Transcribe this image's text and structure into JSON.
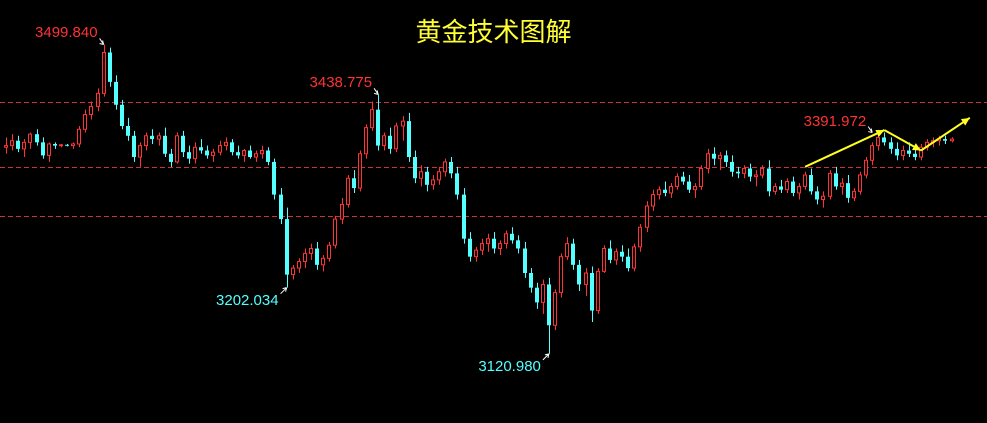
{
  "title": "黄金技术图解",
  "colors": {
    "background": "#000000",
    "title": "#ffff33",
    "bull_candle": "#ff3333",
    "bear_candle": "#54ffff",
    "flat_candle": "#ffffff",
    "high_label": "#ff3333",
    "low_label": "#54ffff",
    "level_line": "#cc3333",
    "forecast_arrow": "#ffff22"
  },
  "chart_data": {
    "type": "candlestick",
    "title": "黄金技术图解",
    "ylim": [
      3100,
      3520
    ],
    "grid": false,
    "legend": "none",
    "reference_levels": [
      3430,
      3350,
      3290
    ],
    "annotations": [
      {
        "text": "3499.840",
        "price": 3499.84,
        "candle": 16,
        "kind": "high"
      },
      {
        "text": "3438.775",
        "price": 3438.775,
        "candle": 61,
        "kind": "high"
      },
      {
        "text": "3391.972",
        "price": 3391.972,
        "candle": 142,
        "kind": "high"
      },
      {
        "text": "3202.034",
        "price": 3202.034,
        "candle": 46,
        "kind": "low"
      },
      {
        "text": "3120.980",
        "price": 3120.98,
        "candle": 89,
        "kind": "low"
      }
    ],
    "forecast_path": [
      {
        "candle": 131,
        "price": 3350
      },
      {
        "candle": 144,
        "price": 3395
      },
      {
        "candle": 150,
        "price": 3370
      },
      {
        "candle": 158,
        "price": 3410
      }
    ],
    "candles": [
      [
        3374,
        3386,
        3366,
        3376
      ],
      [
        3376,
        3390,
        3370,
        3382
      ],
      [
        3382,
        3388,
        3368,
        3372
      ],
      [
        3372,
        3384,
        3362,
        3380
      ],
      [
        3380,
        3392,
        3372,
        3390
      ],
      [
        3390,
        3396,
        3376,
        3380
      ],
      [
        3380,
        3386,
        3360,
        3364
      ],
      [
        3364,
        3380,
        3356,
        3378
      ],
      [
        3378,
        3380,
        3372,
        3376
      ],
      [
        3376,
        3378,
        3374,
        3377
      ],
      [
        3377,
        3378,
        3375,
        3376
      ],
      [
        3376,
        3380,
        3372,
        3378
      ],
      [
        3378,
        3400,
        3374,
        3396
      ],
      [
        3396,
        3420,
        3392,
        3414
      ],
      [
        3414,
        3430,
        3408,
        3424
      ],
      [
        3424,
        3446,
        3418,
        3440
      ],
      [
        3440,
        3499.84,
        3436,
        3490
      ],
      [
        3490,
        3496,
        3448,
        3454
      ],
      [
        3454,
        3462,
        3420,
        3426
      ],
      [
        3426,
        3432,
        3396,
        3400
      ],
      [
        3400,
        3410,
        3382,
        3388
      ],
      [
        3388,
        3394,
        3356,
        3362
      ],
      [
        3362,
        3380,
        3350,
        3376
      ],
      [
        3376,
        3392,
        3370,
        3388
      ],
      [
        3388,
        3396,
        3378,
        3384
      ],
      [
        3384,
        3392,
        3376,
        3388
      ],
      [
        3388,
        3398,
        3362,
        3366
      ],
      [
        3366,
        3372,
        3350,
        3356
      ],
      [
        3356,
        3392,
        3354,
        3388
      ],
      [
        3388,
        3394,
        3362,
        3368
      ],
      [
        3368,
        3376,
        3354,
        3360
      ],
      [
        3360,
        3380,
        3354,
        3374
      ],
      [
        3374,
        3384,
        3366,
        3370
      ],
      [
        3370,
        3376,
        3360,
        3364
      ],
      [
        3364,
        3372,
        3356,
        3368
      ],
      [
        3368,
        3382,
        3364,
        3376
      ],
      [
        3376,
        3386,
        3370,
        3380
      ],
      [
        3380,
        3384,
        3364,
        3368
      ],
      [
        3368,
        3376,
        3360,
        3364
      ],
      [
        3364,
        3372,
        3356,
        3370
      ],
      [
        3370,
        3376,
        3360,
        3362
      ],
      [
        3362,
        3370,
        3356,
        3366
      ],
      [
        3366,
        3376,
        3360,
        3370
      ],
      [
        3370,
        3374,
        3352,
        3356
      ],
      [
        3356,
        3360,
        3310,
        3316
      ],
      [
        3316,
        3324,
        3280,
        3286
      ],
      [
        3286,
        3300,
        3202.034,
        3218
      ],
      [
        3218,
        3230,
        3212,
        3226
      ],
      [
        3226,
        3238,
        3220,
        3234
      ],
      [
        3234,
        3250,
        3226,
        3244
      ],
      [
        3244,
        3256,
        3236,
        3250
      ],
      [
        3250,
        3258,
        3224,
        3230
      ],
      [
        3230,
        3242,
        3222,
        3238
      ],
      [
        3238,
        3258,
        3234,
        3254
      ],
      [
        3254,
        3290,
        3250,
        3286
      ],
      [
        3286,
        3312,
        3280,
        3304
      ],
      [
        3304,
        3340,
        3300,
        3336
      ],
      [
        3336,
        3346,
        3318,
        3324
      ],
      [
        3324,
        3370,
        3320,
        3366
      ],
      [
        3366,
        3402,
        3360,
        3398
      ],
      [
        3398,
        3430,
        3394,
        3420
      ],
      [
        3420,
        3438.775,
        3370,
        3376
      ],
      [
        3376,
        3392,
        3370,
        3388
      ],
      [
        3388,
        3398,
        3366,
        3372
      ],
      [
        3372,
        3404,
        3368,
        3400
      ],
      [
        3400,
        3412,
        3382,
        3406
      ],
      [
        3406,
        3416,
        3356,
        3362
      ],
      [
        3362,
        3370,
        3330,
        3336
      ],
      [
        3336,
        3352,
        3326,
        3344
      ],
      [
        3344,
        3350,
        3320,
        3328
      ],
      [
        3328,
        3340,
        3322,
        3334
      ],
      [
        3334,
        3350,
        3328,
        3344
      ],
      [
        3344,
        3360,
        3338,
        3356
      ],
      [
        3356,
        3362,
        3336,
        3342
      ],
      [
        3342,
        3350,
        3310,
        3316
      ],
      [
        3316,
        3324,
        3256,
        3262
      ],
      [
        3262,
        3270,
        3234,
        3240
      ],
      [
        3240,
        3252,
        3234,
        3248
      ],
      [
        3248,
        3262,
        3242,
        3256
      ],
      [
        3256,
        3268,
        3246,
        3262
      ],
      [
        3262,
        3270,
        3244,
        3250
      ],
      [
        3250,
        3260,
        3242,
        3256
      ],
      [
        3256,
        3272,
        3250,
        3268
      ],
      [
        3268,
        3276,
        3256,
        3260
      ],
      [
        3260,
        3266,
        3244,
        3250
      ],
      [
        3250,
        3258,
        3214,
        3220
      ],
      [
        3220,
        3226,
        3196,
        3202
      ],
      [
        3202,
        3208,
        3176,
        3184
      ],
      [
        3184,
        3212,
        3170,
        3206
      ],
      [
        3206,
        3214,
        3120.98,
        3156
      ],
      [
        3156,
        3200,
        3150,
        3196
      ],
      [
        3196,
        3244,
        3190,
        3240
      ],
      [
        3240,
        3264,
        3236,
        3256
      ],
      [
        3256,
        3262,
        3224,
        3230
      ],
      [
        3230,
        3236,
        3198,
        3206
      ],
      [
        3206,
        3226,
        3192,
        3220
      ],
      [
        3220,
        3228,
        3160,
        3174
      ],
      [
        3174,
        3226,
        3170,
        3222
      ],
      [
        3222,
        3254,
        3220,
        3250
      ],
      [
        3250,
        3260,
        3232,
        3236
      ],
      [
        3236,
        3250,
        3230,
        3246
      ],
      [
        3246,
        3254,
        3234,
        3240
      ],
      [
        3240,
        3250,
        3222,
        3226
      ],
      [
        3226,
        3256,
        3222,
        3252
      ],
      [
        3252,
        3280,
        3246,
        3276
      ],
      [
        3276,
        3308,
        3270,
        3302
      ],
      [
        3302,
        3322,
        3296,
        3316
      ],
      [
        3316,
        3326,
        3310,
        3322
      ],
      [
        3322,
        3332,
        3314,
        3318
      ],
      [
        3318,
        3330,
        3312,
        3326
      ],
      [
        3326,
        3342,
        3322,
        3338
      ],
      [
        3338,
        3344,
        3328,
        3332
      ],
      [
        3332,
        3340,
        3318,
        3322
      ],
      [
        3322,
        3330,
        3312,
        3326
      ],
      [
        3326,
        3352,
        3322,
        3348
      ],
      [
        3348,
        3372,
        3342,
        3366
      ],
      [
        3366,
        3374,
        3352,
        3360
      ],
      [
        3360,
        3368,
        3346,
        3364
      ],
      [
        3364,
        3370,
        3350,
        3356
      ],
      [
        3356,
        3364,
        3338,
        3344
      ],
      [
        3344,
        3350,
        3336,
        3342
      ],
      [
        3342,
        3352,
        3336,
        3348
      ],
      [
        3348,
        3354,
        3332,
        3338
      ],
      [
        3338,
        3346,
        3326,
        3340
      ],
      [
        3340,
        3352,
        3336,
        3348
      ],
      [
        3348,
        3358,
        3314,
        3320
      ],
      [
        3320,
        3330,
        3316,
        3326
      ],
      [
        3326,
        3334,
        3318,
        3322
      ],
      [
        3322,
        3336,
        3318,
        3332
      ],
      [
        3332,
        3338,
        3314,
        3318
      ],
      [
        3318,
        3330,
        3310,
        3326
      ],
      [
        3326,
        3344,
        3322,
        3340
      ],
      [
        3340,
        3348,
        3316,
        3320
      ],
      [
        3320,
        3326,
        3304,
        3310
      ],
      [
        3310,
        3320,
        3300,
        3314
      ],
      [
        3314,
        3346,
        3310,
        3342
      ],
      [
        3342,
        3350,
        3322,
        3326
      ],
      [
        3326,
        3336,
        3316,
        3330
      ],
      [
        3330,
        3340,
        3306,
        3312
      ],
      [
        3312,
        3324,
        3308,
        3320
      ],
      [
        3320,
        3344,
        3316,
        3340
      ],
      [
        3340,
        3362,
        3336,
        3358
      ],
      [
        3358,
        3380,
        3352,
        3376
      ],
      [
        3376,
        3392,
        3370,
        3386
      ],
      [
        3386,
        3391.972,
        3376,
        3380
      ],
      [
        3380,
        3386,
        3366,
        3372
      ],
      [
        3372,
        3380,
        3358,
        3364
      ],
      [
        3364,
        3376,
        3358,
        3370
      ],
      [
        3370,
        3380,
        3362,
        3366
      ],
      [
        3366,
        3372,
        3358,
        3362
      ],
      [
        3362,
        3378,
        3358,
        3374
      ],
      [
        3374,
        3384,
        3370,
        3380
      ],
      [
        3380,
        3386,
        3374,
        3382
      ],
      [
        3382,
        3388,
        3376,
        3384
      ],
      [
        3384,
        3388,
        3378,
        3382
      ],
      [
        3382,
        3386,
        3380,
        3384
      ]
    ]
  }
}
